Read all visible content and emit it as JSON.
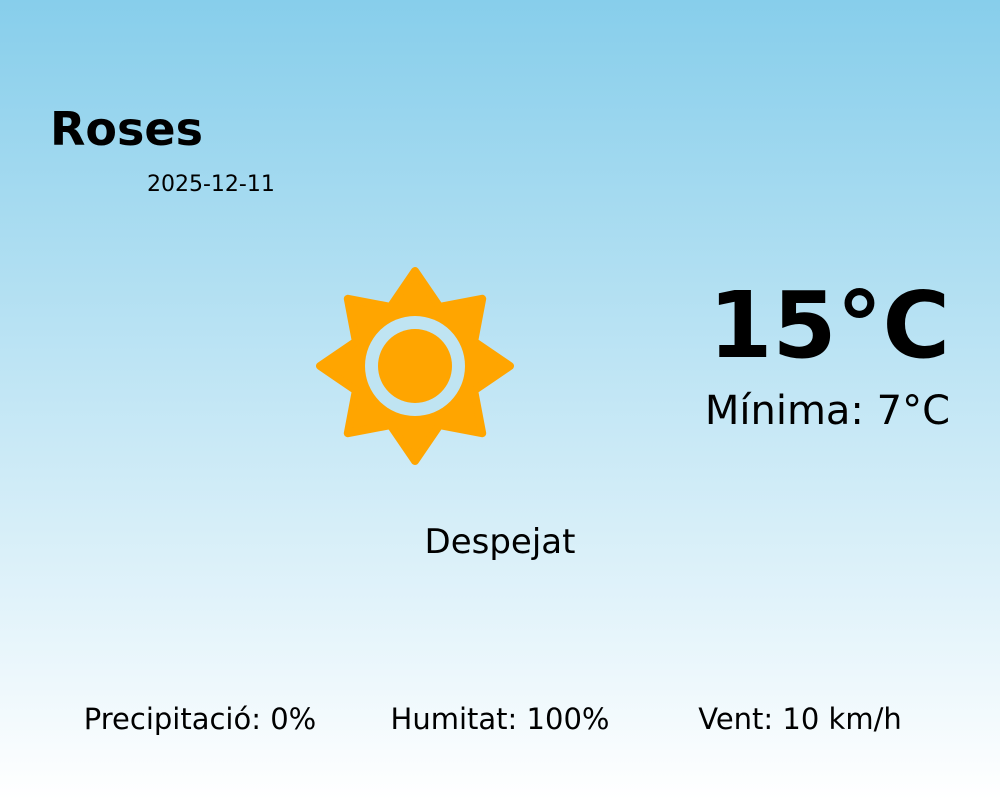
{
  "location": {
    "city": "Roses",
    "date": "2025-12-11"
  },
  "current": {
    "temperature": "15°C",
    "minimum": "Mínima: 7°C",
    "condition": "Despejat",
    "icon": "sun-icon",
    "icon_color": "#ffa500"
  },
  "stats": {
    "precipitation": "Precipitació: 0%",
    "humidity": "Humitat: 100%",
    "wind": "Vent: 10 km/h"
  },
  "colors": {
    "sky_top": "#87ceeb",
    "sky_bottom": "#ffffff"
  }
}
